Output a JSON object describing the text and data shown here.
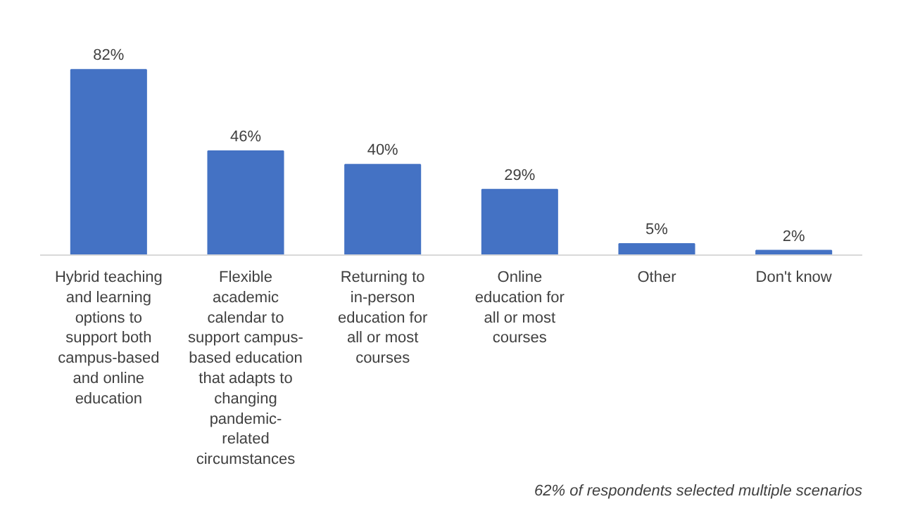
{
  "chart_data": {
    "type": "bar",
    "categories": [
      "Hybrid teaching and learning options to support both campus-based and online education",
      "Flexible academic calendar to support campus-based education that adapts to changing pandemic-related circumstances",
      "Returning to in-person education for all or most courses",
      "Online education for all or most courses",
      "Other",
      "Don't know"
    ],
    "values": [
      82,
      46,
      40,
      29,
      5,
      2
    ],
    "color": "#4472c4",
    "data_labels": true,
    "value_labels": [
      "82%",
      "46%",
      "40%",
      "29%",
      "5%",
      "2%"
    ],
    "grid": false,
    "annotations": [
      "62% of respondents selected multiple scenarios"
    ]
  }
}
